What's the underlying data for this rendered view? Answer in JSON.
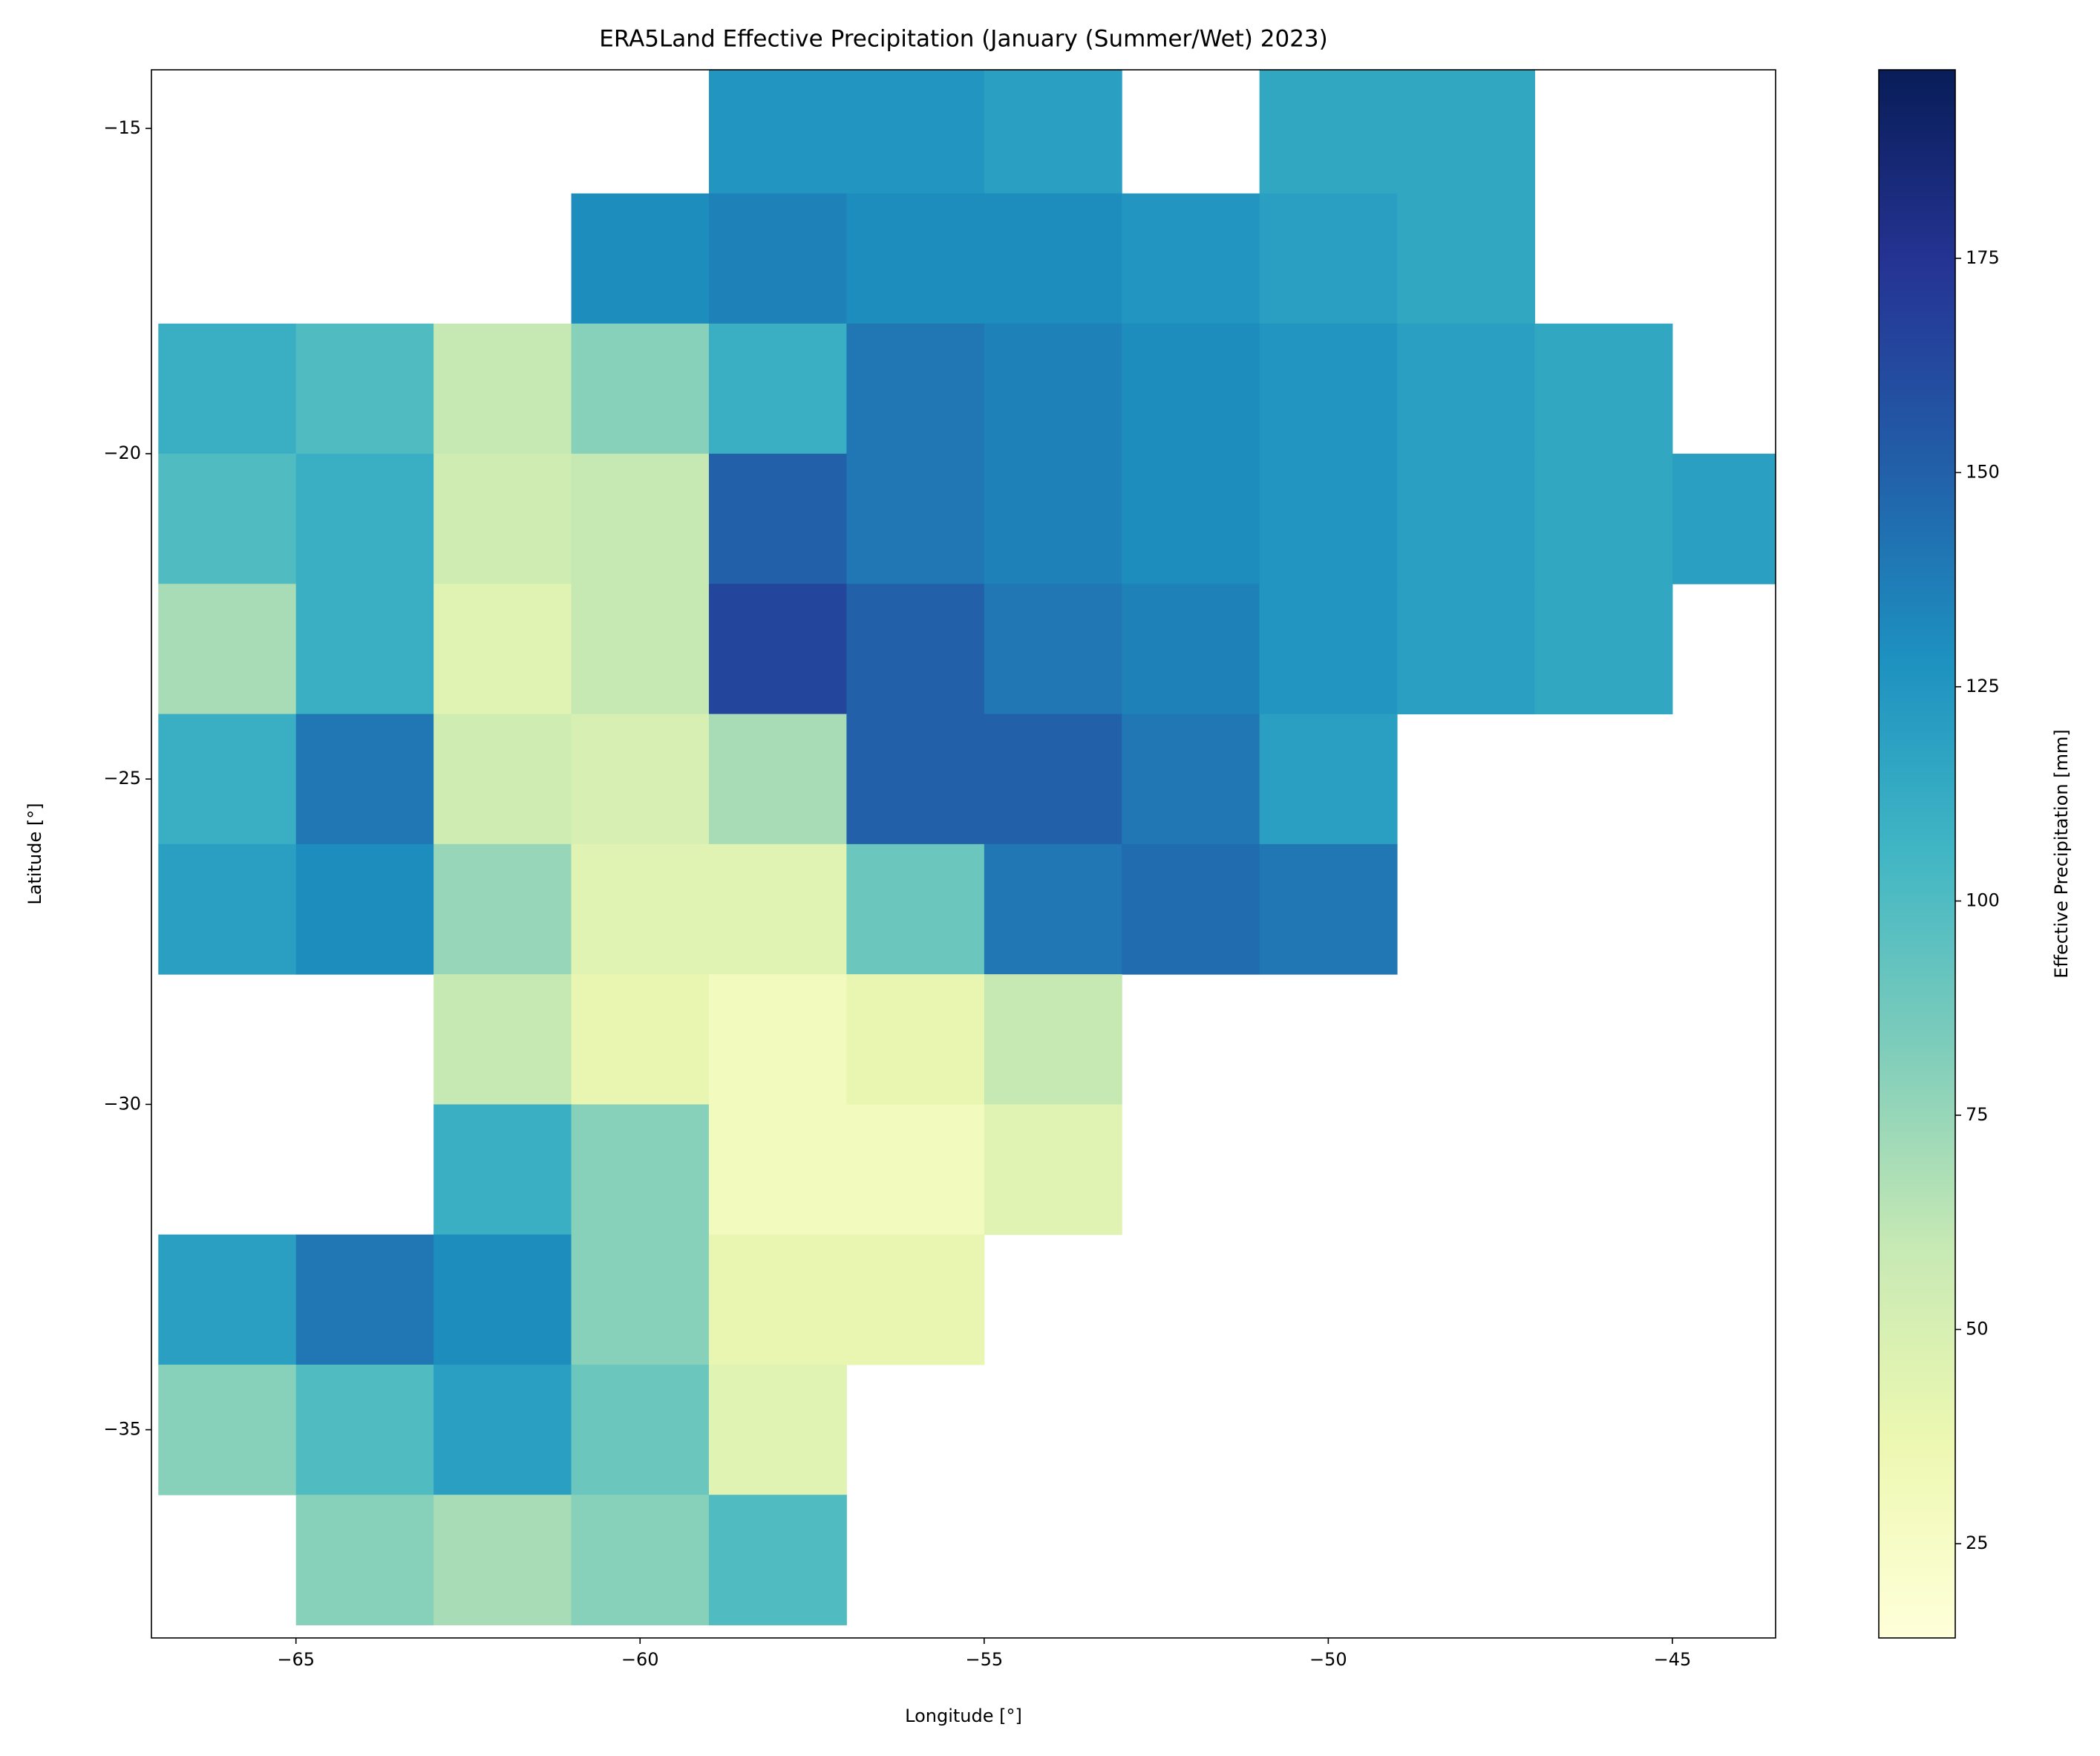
{
  "chart_data": {
    "type": "heatmap",
    "title": "ERA5Land Effective Precipitation (January (Summer/Wet) 2023)",
    "x_label": "Longitude [°]",
    "y_label": "Latitude [°]",
    "colorbar_label": "Effective Precipitation [mm]",
    "x": [
      -66,
      -64,
      -62,
      -60,
      -58,
      -56,
      -54,
      -52,
      -50,
      -48,
      -46,
      -44
    ],
    "y": [
      -15,
      -17,
      -19,
      -21,
      -23,
      -25,
      -27,
      -29,
      -31,
      -33,
      -35,
      -37
    ],
    "values": [
      [
        null,
        null,
        null,
        null,
        125,
        125,
        120,
        null,
        115,
        115,
        null,
        null
      ],
      [
        null,
        null,
        null,
        130,
        135,
        130,
        130,
        125,
        120,
        115,
        null,
        null
      ],
      [
        110,
        100,
        60,
        80,
        110,
        140,
        135,
        130,
        125,
        120,
        115,
        null
      ],
      [
        100,
        110,
        55,
        60,
        150,
        140,
        135,
        130,
        125,
        120,
        115,
        120
      ],
      [
        70,
        110,
        45,
        60,
        165,
        150,
        140,
        135,
        125,
        120,
        115,
        null
      ],
      [
        110,
        140,
        55,
        50,
        70,
        150,
        150,
        140,
        120,
        null,
        null,
        null
      ],
      [
        120,
        130,
        75,
        45,
        45,
        90,
        140,
        145,
        140,
        null,
        null,
        null
      ],
      [
        null,
        null,
        60,
        40,
        30,
        40,
        60,
        null,
        null,
        null,
        null,
        null
      ],
      [
        null,
        null,
        110,
        80,
        30,
        30,
        45,
        null,
        null,
        null,
        null,
        null
      ],
      [
        120,
        140,
        130,
        80,
        40,
        40,
        null,
        null,
        null,
        null,
        null,
        null
      ],
      [
        80,
        100,
        120,
        90,
        45,
        null,
        null,
        null,
        null,
        null,
        null,
        null
      ],
      [
        null,
        80,
        70,
        80,
        100,
        null,
        null,
        null,
        null,
        null,
        null,
        null
      ]
    ],
    "xlim": [
      -67.1,
      -43.5
    ],
    "ylim": [
      -38.2,
      -14.1
    ],
    "xticks": [
      {
        "value": -65,
        "label": "−65"
      },
      {
        "value": -60,
        "label": "−60"
      },
      {
        "value": -55,
        "label": "−55"
      },
      {
        "value": -50,
        "label": "−50"
      },
      {
        "value": -45,
        "label": "−45"
      }
    ],
    "yticks": [
      {
        "value": -15,
        "label": "−15"
      },
      {
        "value": -20,
        "label": "−20"
      },
      {
        "value": -25,
        "label": "−25"
      },
      {
        "value": -30,
        "label": "−30"
      },
      {
        "value": -35,
        "label": "−35"
      }
    ],
    "clim": [
      14,
      197
    ],
    "cticks": [
      25,
      50,
      75,
      100,
      125,
      150,
      175
    ],
    "colormap": [
      "#ffffd9",
      "#edf8b1",
      "#c7e9b4",
      "#7fcdbb",
      "#41b6c4",
      "#1d91c0",
      "#225ea8",
      "#253494",
      "#081d58"
    ]
  }
}
